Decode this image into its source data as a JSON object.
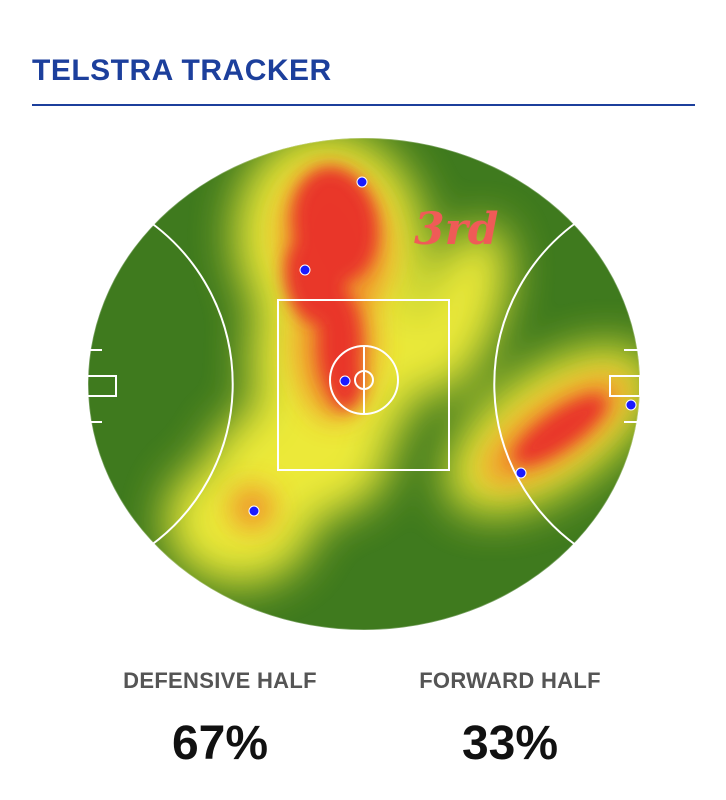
{
  "header": {
    "title": "TELSTRA TRACKER"
  },
  "heatmap": {
    "quarter_label": "3rd",
    "colors": {
      "field_green": "#3f7a1e",
      "heat_yellow": "#f6f03a",
      "heat_orange": "#f08a2a",
      "heat_red": "#e8302a",
      "marker_blue": "#1a1aff",
      "field_lines": "#ffffff"
    },
    "markers": [
      {
        "name": "marker-top"
      },
      {
        "name": "marker-upper-left"
      },
      {
        "name": "marker-centre"
      },
      {
        "name": "marker-lower-left"
      },
      {
        "name": "marker-forward-pocket"
      },
      {
        "name": "marker-forward-goal"
      }
    ]
  },
  "stats": {
    "defensive": {
      "label": "DEFENSIVE HALF",
      "value": "67%"
    },
    "forward": {
      "label": "FORWARD HALF",
      "value": "33%"
    }
  }
}
